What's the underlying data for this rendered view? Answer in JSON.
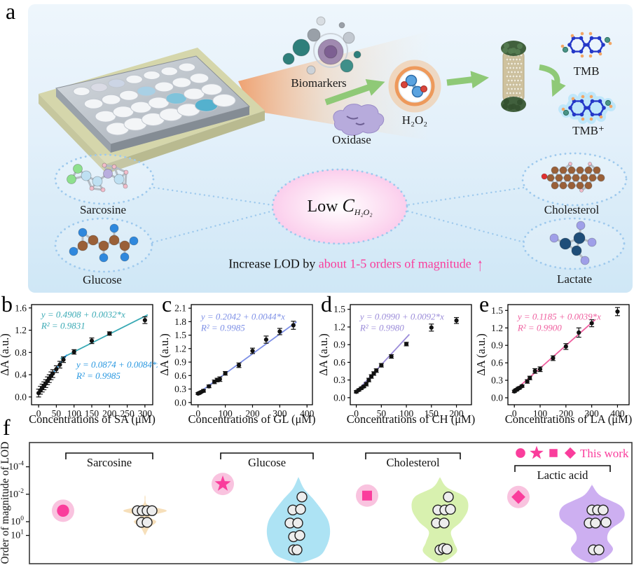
{
  "panel_labels": {
    "a": "a",
    "b": "b",
    "c": "c",
    "d": "d",
    "e": "e",
    "f": "f"
  },
  "panel_a": {
    "labels": {
      "biomarkers": "Biomarkers",
      "oxidase": "Oxidase",
      "h2o2": "H₂O₂",
      "tmb": "TMB",
      "tmb_plus": "TMB⁺",
      "sarcosine": "Sarcosine",
      "glucose": "Glucose",
      "cholesterol": "Cholesterol",
      "lactate": "Lactate"
    },
    "center": {
      "prefix": "Low ",
      "symbol": "C",
      "subscript": "H₂O₂"
    },
    "caption": {
      "black": "Increase LOD by ",
      "pink": "about 1-5 orders of magnitude",
      "arrow": "↑"
    },
    "colors": {
      "accent_pink": "#fa3d9c",
      "arrow_green": "#8fc977",
      "dotted_blue": "#9ec9ed"
    },
    "plate_wells": [
      {
        "r": 0,
        "c": 1,
        "color": "#dadbe5"
      },
      {
        "r": 0,
        "c": 2,
        "color": "#ccd5e5"
      },
      {
        "r": 1,
        "c": 3,
        "color": "#a9d0e5"
      },
      {
        "r": 2,
        "c": 4,
        "color": "#7fc3db"
      },
      {
        "r": 3,
        "c": 5,
        "color": "#54b1ce"
      }
    ]
  },
  "chart_data": [
    {
      "id": "b",
      "type": "scatter",
      "xlabel": "Concentrations of SA (μM)",
      "ylabel": "ΔA (a.u.)",
      "xlim": [
        -20,
        322
      ],
      "ylim": [
        -0.14,
        1.66
      ],
      "xticks": [
        0,
        50,
        100,
        150,
        200,
        250,
        300
      ],
      "yticks": [
        0.0,
        0.4,
        0.8,
        1.2,
        1.6
      ],
      "x": [
        0,
        5,
        10,
        15,
        20,
        25,
        30,
        35,
        40,
        50,
        60,
        70,
        100,
        150,
        200,
        300
      ],
      "y": [
        0.07,
        0.12,
        0.16,
        0.2,
        0.24,
        0.29,
        0.33,
        0.38,
        0.42,
        0.5,
        0.58,
        0.67,
        0.81,
        1.01,
        1.14,
        1.38
      ],
      "err": [
        0.07,
        0.07,
        0.07,
        0.07,
        0.07,
        0.07,
        0.07,
        0.07,
        0.07,
        0.06,
        0.06,
        0.05,
        0.04,
        0.05,
        0.03,
        0.06
      ],
      "fits": [
        {
          "label": "y = 0.4908 + 0.0032*x",
          "r2": "R² = 0.9831",
          "intercept": 0.4908,
          "slope": 0.0032,
          "xrange": [
            62,
            308
          ],
          "color": "#38a9b4",
          "lx": 0.08,
          "ly": 0.13
        },
        {
          "label": "y = 0.0874 + 0.0084*x",
          "r2": "R² = 0.9985",
          "intercept": 0.0874,
          "slope": 0.0084,
          "xrange": [
            -4,
            80
          ],
          "color": "#2797e0",
          "lx": 0.37,
          "ly": 0.63
        }
      ]
    },
    {
      "id": "c",
      "type": "scatter",
      "xlabel": "Concentrations of GL (μM)",
      "ylabel": "ΔA (a.u.)",
      "xlim": [
        -25,
        420
      ],
      "ylim": [
        -0.05,
        2.18
      ],
      "xticks": [
        0,
        100,
        200,
        300,
        400
      ],
      "yticks": [
        0.0,
        0.3,
        0.6,
        0.9,
        1.2,
        1.5,
        1.8,
        2.1
      ],
      "x": [
        0,
        5,
        10,
        20,
        40,
        60,
        70,
        80,
        100,
        150,
        200,
        250,
        300,
        350
      ],
      "y": [
        0.2,
        0.21,
        0.23,
        0.26,
        0.36,
        0.46,
        0.5,
        0.52,
        0.65,
        0.83,
        1.15,
        1.4,
        1.58,
        1.72
      ],
      "err": [
        0.02,
        0.02,
        0.02,
        0.03,
        0.03,
        0.04,
        0.04,
        0.05,
        0.04,
        0.05,
        0.06,
        0.08,
        0.07,
        0.09
      ],
      "fits": [
        {
          "label": "y = 0.2042 + 0.0044*x",
          "r2": "R² = 0.9985",
          "intercept": 0.2042,
          "slope": 0.0044,
          "xrange": [
            -5,
            362
          ],
          "color": "#7d8fe6",
          "lx": 0.08,
          "ly": 0.15
        }
      ]
    },
    {
      "id": "d",
      "type": "scatter",
      "xlabel": "Concentrations of CH (μM)",
      "ylabel": "ΔA (a.u.)",
      "xlim": [
        -12,
        230
      ],
      "ylim": [
        -0.12,
        1.58
      ],
      "xticks": [
        0,
        50,
        100,
        150,
        200
      ],
      "yticks": [
        0.0,
        0.3,
        0.6,
        0.9,
        1.2,
        1.5
      ],
      "x": [
        0,
        5,
        10,
        15,
        20,
        25,
        30,
        35,
        40,
        50,
        70,
        100,
        150,
        200
      ],
      "y": [
        0.1,
        0.13,
        0.16,
        0.19,
        0.23,
        0.3,
        0.36,
        0.41,
        0.46,
        0.55,
        0.7,
        0.91,
        1.19,
        1.31
      ],
      "err": [
        0.02,
        0.02,
        0.02,
        0.02,
        0.03,
        0.03,
        0.03,
        0.03,
        0.03,
        0.03,
        0.03,
        0.03,
        0.06,
        0.05
      ],
      "fits": [
        {
          "label": "y = 0.0990 + 0.0092*x",
          "r2": "R² = 0.9980",
          "intercept": 0.099,
          "slope": 0.0092,
          "xrange": [
            -3,
            106
          ],
          "color": "#9b8cd9",
          "lx": 0.08,
          "ly": 0.15
        }
      ]
    },
    {
      "id": "e",
      "type": "scatter",
      "xlabel": "Concentrations of LA (μM)",
      "ylabel": "ΔA (a.u.)",
      "xlim": [
        -25,
        445
      ],
      "ylim": [
        -0.12,
        1.6
      ],
      "xticks": [
        0,
        100,
        200,
        300,
        400
      ],
      "yticks": [
        0.0,
        0.3,
        0.6,
        0.9,
        1.2,
        1.5
      ],
      "x": [
        0,
        5,
        10,
        15,
        20,
        30,
        50,
        60,
        80,
        100,
        150,
        200,
        250,
        300,
        400
      ],
      "y": [
        0.11,
        0.13,
        0.14,
        0.16,
        0.17,
        0.2,
        0.28,
        0.34,
        0.46,
        0.49,
        0.68,
        0.88,
        1.12,
        1.28,
        1.48
      ],
      "err": [
        0.02,
        0.02,
        0.02,
        0.02,
        0.02,
        0.02,
        0.03,
        0.03,
        0.04,
        0.04,
        0.04,
        0.05,
        0.08,
        0.06,
        0.07
      ],
      "fits": [
        {
          "label": "y = 0.1185 + 0.0039*x",
          "r2": "R² = 0.9900",
          "intercept": 0.1185,
          "slope": 0.0039,
          "xrange": [
            -8,
            315
          ],
          "color": "#ef5f9f",
          "lx": 0.08,
          "ly": 0.15
        }
      ]
    },
    {
      "id": "f",
      "type": "violin-log",
      "ylabel": "Order of magnitude of LOD",
      "yticks": [
        {
          "exp": "-4",
          "log": -4
        },
        {
          "exp": "-2",
          "log": -2
        },
        {
          "exp": "0",
          "log": 0
        },
        {
          "exp": "1",
          "log": 1
        }
      ],
      "marker_color": "#fa3d9c",
      "halo_color": "#f9c3df",
      "legend": {
        "label": "This work",
        "marker_shapes": [
          "circle",
          "star",
          "square",
          "diamond"
        ]
      },
      "groups": [
        {
          "name": "Sarcosine",
          "bracket": [
            94,
            218
          ],
          "bracket_y": 31,
          "marker": {
            "shape": "circle",
            "x": 90,
            "log": -0.8
          },
          "violin": {
            "cx": 207,
            "color": "#f6ddb6",
            "profile": [
              [
                -1.85,
                0.5
              ],
              [
                -1.2,
                4
              ],
              [
                -0.8,
                31
              ],
              [
                -0.4,
                7
              ],
              [
                0.0,
                16
              ],
              [
                0.45,
                6
              ],
              [
                0.95,
                0.5
              ]
            ]
          },
          "points": [
            [
              -11,
              -0.8
            ],
            [
              -4,
              -0.8
            ],
            [
              3,
              -0.8
            ],
            [
              10,
              -0.8
            ],
            [
              -5,
              0.05
            ],
            [
              3,
              0.05
            ]
          ]
        },
        {
          "name": "Glucose",
          "bracket": [
            315,
            447
          ],
          "bracket_y": 31,
          "marker": {
            "shape": "star",
            "x": 318,
            "log": -2.75
          },
          "violin": {
            "cx": 426,
            "color": "#a9e1f3",
            "profile": [
              [
                -3.2,
                0.5
              ],
              [
                -2.4,
                8
              ],
              [
                -1.6,
                22
              ],
              [
                -0.8,
                34
              ],
              [
                0.0,
                43
              ],
              [
                0.9,
                45
              ],
              [
                1.8,
                40
              ],
              [
                2.5,
                30
              ],
              [
                2.95,
                6
              ]
            ]
          },
          "points": [
            [
              5,
              -1.8
            ],
            [
              -8,
              -0.85
            ],
            [
              3,
              -0.9
            ],
            [
              -12,
              0.1
            ],
            [
              -1,
              0.1
            ],
            [
              -7,
              1.1
            ],
            [
              2,
              1.0
            ],
            [
              -7,
              2.05
            ],
            [
              -2,
              2.05
            ]
          ]
        },
        {
          "name": "Cholesterol",
          "bracket": [
            522,
            657
          ],
          "bracket_y": 31,
          "marker": {
            "shape": "square",
            "x": 524,
            "log": -1.9
          },
          "violin": {
            "cx": 628,
            "color": "#d6f0ab",
            "profile": [
              [
                -3.2,
                0.5
              ],
              [
                -2.5,
                10
              ],
              [
                -1.8,
                36
              ],
              [
                -0.9,
                40
              ],
              [
                0.0,
                30
              ],
              [
                0.7,
                16
              ],
              [
                1.5,
                20
              ],
              [
                2.2,
                24
              ],
              [
                2.9,
                6
              ]
            ]
          },
          "points": [
            [
              12,
              -1.8
            ],
            [
              -3,
              -0.85
            ],
            [
              7,
              -0.85
            ],
            [
              15,
              -0.9
            ],
            [
              -5,
              0.1
            ],
            [
              6,
              0.1
            ],
            [
              0,
              2.05
            ],
            [
              5,
              1.95
            ],
            [
              10,
              2.0
            ]
          ]
        },
        {
          "name": "Lactic acid",
          "bracket": [
            735,
            871
          ],
          "bracket_y": 49,
          "marker": {
            "shape": "diamond",
            "x": 740,
            "log": -1.8
          },
          "violin": {
            "cx": 845,
            "color": "#caabf0",
            "profile": [
              [
                -2.65,
                0.5
              ],
              [
                -1.9,
                12
              ],
              [
                -1.1,
                42
              ],
              [
                -0.2,
                45
              ],
              [
                0.6,
                26
              ],
              [
                1.3,
                22
              ],
              [
                2.0,
                30
              ],
              [
                2.6,
                20
              ],
              [
                2.95,
                5
              ]
            ]
          },
          "points": [
            [
              0,
              -0.85
            ],
            [
              8,
              -0.85
            ],
            [
              16,
              -0.85
            ],
            [
              -4,
              0.1
            ],
            [
              5,
              0.1
            ],
            [
              20,
              0.05
            ],
            [
              2,
              2.05
            ],
            [
              10,
              2.05
            ]
          ]
        }
      ]
    }
  ]
}
